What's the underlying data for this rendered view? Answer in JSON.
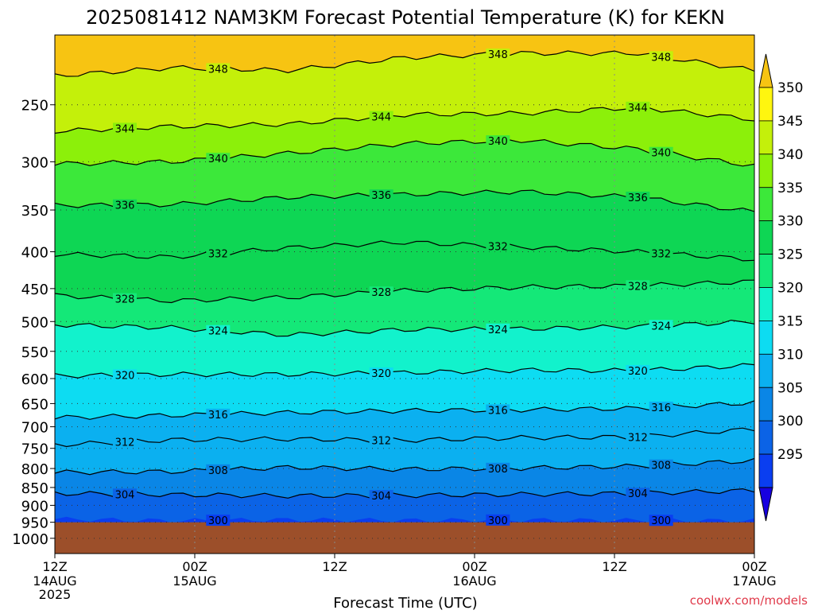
{
  "title": "2025081412 NAM3KM Forecast Potential Temperature (K) for KEKN",
  "watermark": "coolwx.com/models",
  "chart_data": {
    "type": "heatmap",
    "title": "2025081412 NAM3KM Forecast Potential Temperature (K) for KEKN",
    "xlabel": "Forecast Time (UTC)",
    "ylabel": "",
    "x_ticks": [
      {
        "h": 0,
        "label": "12Z",
        "sub1": "14AUG",
        "sub2": "2025"
      },
      {
        "h": 12,
        "label": "00Z",
        "sub1": "15AUG",
        "sub2": ""
      },
      {
        "h": 24,
        "label": "12Z",
        "sub1": "",
        "sub2": ""
      },
      {
        "h": 36,
        "label": "00Z",
        "sub1": "16AUG",
        "sub2": ""
      },
      {
        "h": 48,
        "label": "12Z",
        "sub1": "",
        "sub2": ""
      },
      {
        "h": 60,
        "label": "00Z",
        "sub1": "17AUG",
        "sub2": ""
      }
    ],
    "xlim": [
      0,
      60
    ],
    "y_ticks": [
      250,
      300,
      350,
      400,
      450,
      500,
      550,
      600,
      650,
      700,
      750,
      800,
      850,
      900,
      950,
      1000
    ],
    "ylim": [
      1050,
      200
    ],
    "y_scale": "log",
    "grid": true,
    "ground_level_hPa": 950,
    "ground_color": "#9c4f2a",
    "colorbar": {
      "levels": [
        295,
        300,
        305,
        310,
        315,
        320,
        325,
        330,
        335,
        340,
        345,
        350
      ],
      "labels": [
        "295",
        "300",
        "305",
        "310",
        "315",
        "320",
        "325",
        "330",
        "335",
        "340",
        "345",
        "350"
      ],
      "colors": [
        "#1700e0",
        "#0a3ef0",
        "#0b63e6",
        "#0a86e6",
        "#0bb0f0",
        "#0ddcf2",
        "#12f2cc",
        "#14e878",
        "#0ed654",
        "#3ce83a",
        "#8cf00a",
        "#c4f00a",
        "#fff60f",
        "#f7c412"
      ]
    },
    "contour_series": [
      {
        "name": "300",
        "label": "300",
        "pressure": [
          940,
          945,
          942,
          944,
          943,
          944,
          945
        ]
      },
      {
        "name": "304",
        "label": "304",
        "pressure": [
          866,
          870,
          873,
          872,
          869,
          866,
          858
        ]
      },
      {
        "name": "308",
        "label": "308",
        "pressure": [
          810,
          808,
          797,
          802,
          799,
          794,
          780
        ]
      },
      {
        "name": "312",
        "label": "312",
        "pressure": [
          742,
          730,
          728,
          731,
          725,
          723,
          705
        ]
      },
      {
        "name": "316",
        "label": "316",
        "pressure": [
          680,
          675,
          669,
          665,
          663,
          660,
          648
        ]
      },
      {
        "name": "320",
        "label": "320",
        "pressure": [
          595,
          592,
          592,
          589,
          584,
          585,
          575
        ]
      },
      {
        "name": "324",
        "label": "324",
        "pressure": [
          505,
          510,
          522,
          513,
          512,
          508,
          500
        ]
      },
      {
        "name": "328",
        "label": "328",
        "pressure": [
          460,
          468,
          463,
          453,
          448,
          446,
          440
        ]
      },
      {
        "name": "332",
        "label": "332",
        "pressure": [
          403,
          407,
          395,
          388,
          394,
          400,
          410
        ]
      },
      {
        "name": "336",
        "label": "336",
        "pressure": [
          345,
          344,
          336,
          333,
          330,
          336,
          352
        ]
      },
      {
        "name": "340",
        "label": "340",
        "pressure": [
          302,
          300,
          292,
          283,
          280,
          288,
          304
        ]
      },
      {
        "name": "344",
        "label": "344",
        "pressure": [
          272,
          268,
          266,
          258,
          257,
          252,
          262
        ]
      },
      {
        "name": "348",
        "label": "348",
        "pressure": [
          228,
          222,
          224,
          215,
          212,
          212,
          224
        ]
      }
    ],
    "contour_x": [
      0,
      10,
      20,
      30,
      40,
      50,
      60
    ]
  }
}
